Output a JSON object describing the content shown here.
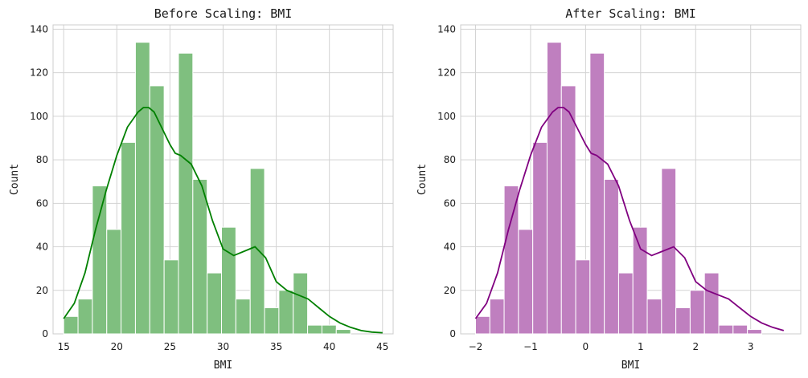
{
  "chart_data": [
    {
      "type": "bar",
      "title": "Before Scaling: BMI",
      "xlabel": "BMI",
      "ylabel": "Count",
      "xlim": [
        14.0,
        46.0
      ],
      "ylim": [
        0,
        142
      ],
      "xticks": [
        15,
        20,
        25,
        30,
        35,
        40,
        45
      ],
      "yticks": [
        0,
        20,
        40,
        60,
        80,
        100,
        120,
        140
      ],
      "grid": true,
      "color": "#008000",
      "bar_color": "#7fbf7f",
      "bins": {
        "edges": [
          15.0,
          16.35,
          17.7,
          19.05,
          20.4,
          21.75,
          23.1,
          24.45,
          25.8,
          27.15,
          28.5,
          29.85,
          31.2,
          32.55,
          33.9,
          35.25,
          36.6,
          37.95,
          39.3,
          40.65,
          42.0
        ],
        "values": [
          8,
          16,
          68,
          48,
          88,
          134,
          114,
          34,
          129,
          71,
          28,
          49,
          16,
          76,
          12,
          20,
          28,
          4,
          4,
          2
        ]
      },
      "kde": {
        "x": [
          15.0,
          16.0,
          17.0,
          18.0,
          19.0,
          20.0,
          21.0,
          22.0,
          22.5,
          23.0,
          23.5,
          24.0,
          25.0,
          25.5,
          26.0,
          27.0,
          28.0,
          29.0,
          30.0,
          31.0,
          32.0,
          33.0,
          34.0,
          35.0,
          36.0,
          37.0,
          38.0,
          39.0,
          40.0,
          41.0,
          42.0,
          43.0,
          44.0,
          45.0
        ],
        "y": [
          7,
          14,
          28,
          48,
          66,
          82,
          95,
          102,
          104,
          104,
          102,
          97,
          87,
          83,
          82,
          78,
          68,
          52,
          39,
          36,
          38,
          40,
          35,
          24,
          20,
          18,
          16,
          12,
          8,
          5,
          3,
          1.5,
          0.8,
          0.5
        ]
      }
    },
    {
      "type": "bar",
      "title": "After Scaling: BMI",
      "xlabel": "BMI",
      "ylabel": "Count",
      "xlim": [
        -2.27,
        3.91
      ],
      "ylim": [
        0,
        142
      ],
      "xticks": [
        -2,
        -1,
        0,
        1,
        2,
        3
      ],
      "xtick_labels": [
        "−2",
        "−1",
        "0",
        "1",
        "2",
        "3"
      ],
      "yticks": [
        0,
        20,
        40,
        60,
        80,
        100,
        120,
        140
      ],
      "grid": true,
      "color": "#800080",
      "bar_color": "#bf7fbf",
      "bins": {
        "edges": [
          -2.0,
          -1.74,
          -1.48,
          -1.22,
          -0.96,
          -0.7,
          -0.44,
          -0.18,
          0.08,
          0.34,
          0.6,
          0.86,
          1.12,
          1.38,
          1.64,
          1.9,
          2.16,
          2.42,
          2.68,
          2.94,
          3.2
        ],
        "values": [
          8,
          16,
          68,
          48,
          88,
          134,
          114,
          34,
          129,
          71,
          28,
          49,
          16,
          76,
          12,
          20,
          28,
          4,
          4,
          2
        ]
      },
      "kde": {
        "x": [
          -2.0,
          -1.8,
          -1.6,
          -1.4,
          -1.2,
          -1.0,
          -0.8,
          -0.6,
          -0.5,
          -0.4,
          -0.3,
          -0.2,
          0.0,
          0.1,
          0.2,
          0.4,
          0.6,
          0.8,
          1.0,
          1.2,
          1.4,
          1.6,
          1.8,
          2.0,
          2.2,
          2.4,
          2.6,
          2.8,
          3.0,
          3.2,
          3.4,
          3.6
        ],
        "y": [
          7,
          14,
          28,
          48,
          66,
          82,
          95,
          102,
          104,
          104,
          102,
          97,
          87,
          83,
          82,
          78,
          68,
          52,
          39,
          36,
          38,
          40,
          35,
          24,
          20,
          18,
          16,
          12,
          8,
          5,
          3,
          1.5
        ]
      }
    }
  ]
}
